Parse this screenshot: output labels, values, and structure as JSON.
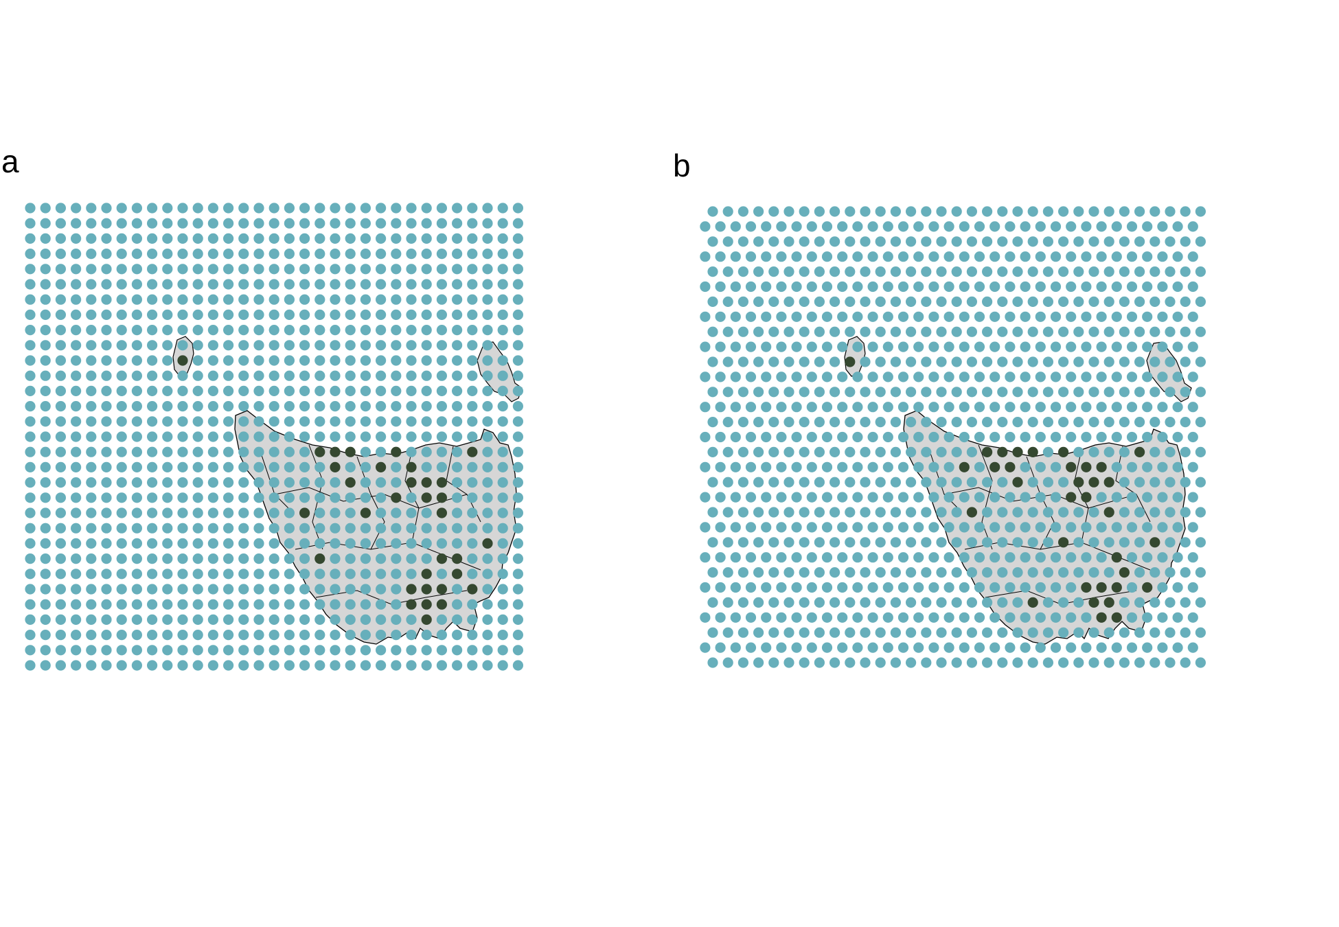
{
  "panels": [
    {
      "id": "a",
      "label": "a",
      "grid": "square"
    },
    {
      "id": "b",
      "label": "b",
      "grid": "hexagonal"
    }
  ],
  "colors": {
    "background": "#ffffff",
    "water_point": "#67afbb",
    "land_point_light": "#67afbb",
    "urban_point": "#354830",
    "land_fill": "#d6d6d6",
    "boundary": "#000000"
  },
  "legend": null
}
